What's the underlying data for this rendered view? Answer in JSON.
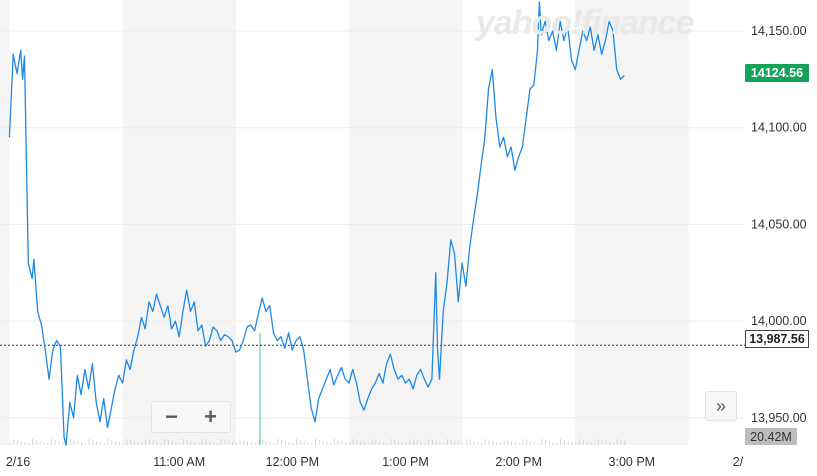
{
  "watermark": "yahoo!finance",
  "badges": {
    "last_price": "14124.56",
    "reference": "13,987.56",
    "volume": "20.42M"
  },
  "controls": {
    "zoom_out": "−",
    "zoom_in": "+",
    "expand": "»"
  },
  "colors": {
    "line": "#1e88e5",
    "price_badge": "#14a35a",
    "shaded_band": "#f4f4f4",
    "grid": "#ececec"
  },
  "chart_data": {
    "type": "line",
    "title": "",
    "xlabel": "",
    "ylabel": "",
    "ylim": [
      13936,
      14166
    ],
    "yticks": [
      13950,
      14000,
      14050,
      14100,
      14150
    ],
    "ytick_labels": [
      "13,950.00",
      "14,000.00",
      "14,050.00",
      "14,100.00",
      "14,150.00"
    ],
    "xticks": [
      "2/16",
      "11:00 AM",
      "12:00 PM",
      "1:00 PM",
      "2:00 PM",
      "3:00 PM",
      "2/"
    ],
    "reference_value": 13987.56,
    "last_value": 14124.56,
    "x_unit": "minutes after 9:30 AM",
    "xlim": [
      -5,
      390
    ],
    "series": [
      {
        "points": [
          [
            0,
            14095
          ],
          [
            2,
            14138
          ],
          [
            4,
            14128
          ],
          [
            6,
            14140
          ],
          [
            7,
            14125
          ],
          [
            8,
            14137
          ],
          [
            10,
            14030
          ],
          [
            12,
            14022
          ],
          [
            13,
            14032
          ],
          [
            15,
            14005
          ],
          [
            17,
            13998
          ],
          [
            19,
            13985
          ],
          [
            21,
            13970
          ],
          [
            23,
            13985
          ],
          [
            25,
            13990
          ],
          [
            27,
            13987
          ],
          [
            29,
            13940
          ],
          [
            30,
            13936
          ],
          [
            32,
            13958
          ],
          [
            34,
            13950
          ],
          [
            36,
            13972
          ],
          [
            38,
            13962
          ],
          [
            40,
            13975
          ],
          [
            42,
            13965
          ],
          [
            44,
            13978
          ],
          [
            46,
            13958
          ],
          [
            48,
            13948
          ],
          [
            50,
            13960
          ],
          [
            52,
            13945
          ],
          [
            54,
            13955
          ],
          [
            56,
            13965
          ],
          [
            58,
            13972
          ],
          [
            60,
            13968
          ],
          [
            62,
            13980
          ],
          [
            64,
            13975
          ],
          [
            66,
            13985
          ],
          [
            68,
            13992
          ],
          [
            70,
            14002
          ],
          [
            72,
            13996
          ],
          [
            74,
            14010
          ],
          [
            76,
            14005
          ],
          [
            78,
            14014
          ],
          [
            80,
            14008
          ],
          [
            82,
            14002
          ],
          [
            84,
            14008
          ],
          [
            86,
            13996
          ],
          [
            88,
            14000
          ],
          [
            90,
            13992
          ],
          [
            92,
            14005
          ],
          [
            94,
            14016
          ],
          [
            96,
            14005
          ],
          [
            98,
            14010
          ],
          [
            100,
            13995
          ],
          [
            102,
            13998
          ],
          [
            104,
            13987
          ],
          [
            106,
            13990
          ],
          [
            108,
            13997
          ],
          [
            110,
            13995
          ],
          [
            112,
            13990
          ],
          [
            114,
            13993
          ],
          [
            116,
            13992
          ],
          [
            118,
            13990
          ],
          [
            120,
            13984
          ],
          [
            122,
            13985
          ],
          [
            124,
            13990
          ],
          [
            126,
            13997
          ],
          [
            128,
            13998
          ],
          [
            130,
            13995
          ],
          [
            132,
            14004
          ],
          [
            134,
            14012
          ],
          [
            136,
            14005
          ],
          [
            138,
            14008
          ],
          [
            140,
            13994
          ],
          [
            142,
            13990
          ],
          [
            144,
            13992
          ],
          [
            146,
            13986
          ],
          [
            148,
            13994
          ],
          [
            150,
            13985
          ],
          [
            152,
            13990
          ],
          [
            154,
            13992
          ],
          [
            156,
            13985
          ],
          [
            158,
            13970
          ],
          [
            160,
            13955
          ],
          [
            162,
            13948
          ],
          [
            164,
            13960
          ],
          [
            166,
            13965
          ],
          [
            168,
            13970
          ],
          [
            170,
            13975
          ],
          [
            172,
            13967
          ],
          [
            174,
            13972
          ],
          [
            176,
            13976
          ],
          [
            178,
            13970
          ],
          [
            180,
            13968
          ],
          [
            182,
            13975
          ],
          [
            184,
            13968
          ],
          [
            186,
            13958
          ],
          [
            188,
            13954
          ],
          [
            190,
            13960
          ],
          [
            192,
            13965
          ],
          [
            194,
            13968
          ],
          [
            196,
            13973
          ],
          [
            198,
            13968
          ],
          [
            200,
            13978
          ],
          [
            202,
            13983
          ],
          [
            204,
            13975
          ],
          [
            206,
            13970
          ],
          [
            208,
            13972
          ],
          [
            210,
            13968
          ],
          [
            212,
            13970
          ],
          [
            214,
            13965
          ],
          [
            216,
            13972
          ],
          [
            218,
            13975
          ],
          [
            220,
            13970
          ],
          [
            222,
            13966
          ],
          [
            224,
            13970
          ],
          [
            226,
            14025
          ],
          [
            227,
            13985
          ],
          [
            228,
            13970
          ],
          [
            230,
            14005
          ],
          [
            232,
            14020
          ],
          [
            234,
            14042
          ],
          [
            236,
            14035
          ],
          [
            238,
            14010
          ],
          [
            240,
            14030
          ],
          [
            242,
            14018
          ],
          [
            244,
            14038
          ],
          [
            246,
            14052
          ],
          [
            248,
            14065
          ],
          [
            250,
            14080
          ],
          [
            252,
            14094
          ],
          [
            254,
            14120
          ],
          [
            256,
            14130
          ],
          [
            258,
            14105
          ],
          [
            260,
            14090
          ],
          [
            262,
            14095
          ],
          [
            264,
            14085
          ],
          [
            266,
            14090
          ],
          [
            268,
            14078
          ],
          [
            270,
            14085
          ],
          [
            272,
            14090
          ],
          [
            274,
            14105
          ],
          [
            276,
            14120
          ],
          [
            278,
            14122
          ],
          [
            280,
            14140
          ],
          [
            281,
            14165
          ],
          [
            282,
            14148
          ],
          [
            284,
            14155
          ],
          [
            286,
            14145
          ],
          [
            288,
            14150
          ],
          [
            290,
            14140
          ],
          [
            292,
            14155
          ],
          [
            294,
            14145
          ],
          [
            296,
            14152
          ],
          [
            298,
            14135
          ],
          [
            300,
            14130
          ],
          [
            302,
            14140
          ],
          [
            304,
            14150
          ],
          [
            306,
            14145
          ],
          [
            308,
            14152
          ],
          [
            310,
            14140
          ],
          [
            312,
            14148
          ],
          [
            314,
            14138
          ],
          [
            316,
            14145
          ],
          [
            318,
            14155
          ],
          [
            320,
            14150
          ],
          [
            322,
            14130
          ],
          [
            324,
            14125
          ],
          [
            326,
            14127
          ]
        ]
      }
    ]
  }
}
